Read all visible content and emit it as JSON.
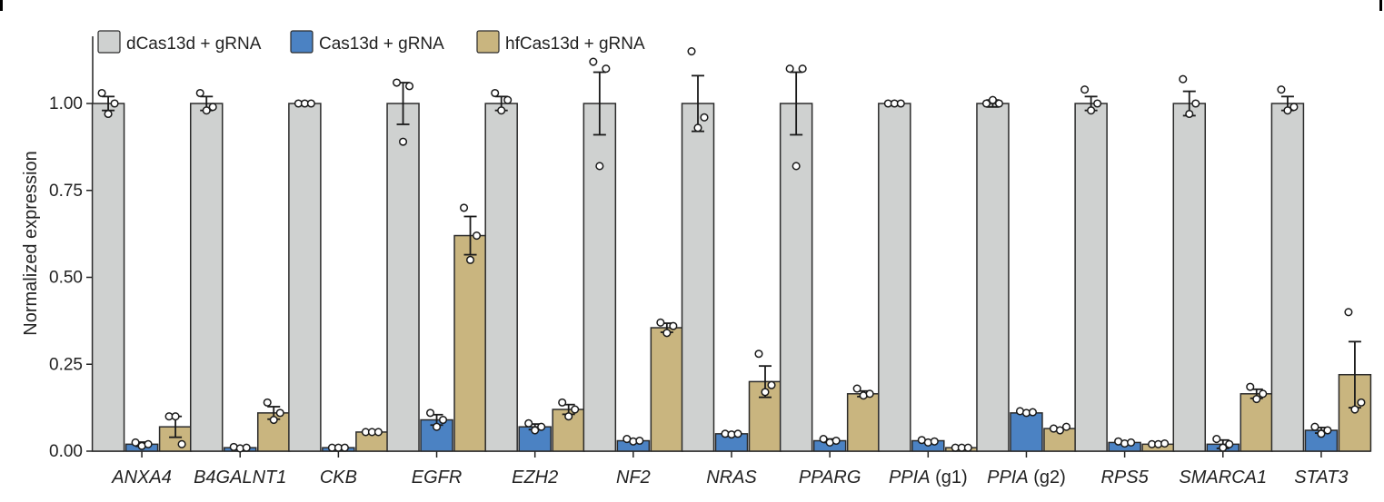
{
  "chart_data": {
    "type": "bar",
    "ylabel": "Normalized expression",
    "ylim": [
      0,
      1.2
    ],
    "yticks": [
      "0.00",
      "0.25",
      "0.50",
      "0.75",
      "1.00"
    ],
    "grid": false,
    "legend_position": "top-left",
    "categories": [
      {
        "gene": "ANXA4",
        "suffix": ""
      },
      {
        "gene": "B4GALNT1",
        "suffix": ""
      },
      {
        "gene": "CKB",
        "suffix": ""
      },
      {
        "gene": "EGFR",
        "suffix": ""
      },
      {
        "gene": "EZH2",
        "suffix": ""
      },
      {
        "gene": "NF2",
        "suffix": ""
      },
      {
        "gene": "NRAS",
        "suffix": ""
      },
      {
        "gene": "PPARG",
        "suffix": ""
      },
      {
        "gene": "PPIA",
        "suffix": " (g1)"
      },
      {
        "gene": "PPIA",
        "suffix": " (g2)"
      },
      {
        "gene": "RPS5",
        "suffix": ""
      },
      {
        "gene": "SMARCA1",
        "suffix": ""
      },
      {
        "gene": "STAT3",
        "suffix": ""
      }
    ],
    "series": [
      {
        "name": "dCas13d + gRNA",
        "color": "#cfd1d0",
        "values": [
          1.0,
          1.0,
          1.0,
          1.0,
          1.0,
          1.0,
          1.0,
          1.0,
          1.0,
          1.0,
          1.0,
          1.0,
          1.0
        ],
        "errors": [
          0.02,
          0.02,
          0.005,
          0.06,
          0.02,
          0.09,
          0.08,
          0.09,
          0.005,
          0.01,
          0.02,
          0.035,
          0.02
        ],
        "points": [
          [
            1.03,
            0.97,
            1.0
          ],
          [
            1.03,
            0.98,
            0.99
          ],
          [
            1.0,
            1.0,
            1.0
          ],
          [
            1.06,
            0.89,
            1.05
          ],
          [
            1.03,
            0.98,
            1.01
          ],
          [
            1.12,
            0.82,
            1.1
          ],
          [
            1.15,
            0.93,
            0.96
          ],
          [
            1.1,
            0.82,
            1.1
          ],
          [
            1.0,
            1.0,
            1.0
          ],
          [
            1.0,
            1.01,
            1.0
          ],
          [
            1.04,
            0.98,
            1.0
          ],
          [
            1.07,
            0.97,
            1.0
          ],
          [
            1.04,
            0.98,
            0.99
          ]
        ]
      },
      {
        "name": "Cas13d + gRNA",
        "color": "#4b82c3",
        "values": [
          0.02,
          0.01,
          0.01,
          0.09,
          0.07,
          0.03,
          0.05,
          0.03,
          0.03,
          0.11,
          0.025,
          0.02,
          0.06
        ],
        "errors": [
          0.006,
          0.003,
          0.002,
          0.015,
          0.008,
          0.004,
          0.004,
          0.005,
          0.004,
          0.004,
          0.003,
          0.012,
          0.008
        ],
        "points": [
          [
            0.025,
            0.015,
            0.02
          ],
          [
            0.012,
            0.008,
            0.01
          ],
          [
            0.01,
            0.01,
            0.01
          ],
          [
            0.11,
            0.07,
            0.09
          ],
          [
            0.08,
            0.06,
            0.07
          ],
          [
            0.035,
            0.028,
            0.03
          ],
          [
            0.05,
            0.048,
            0.05
          ],
          [
            0.035,
            0.025,
            0.03
          ],
          [
            0.032,
            0.025,
            0.028
          ],
          [
            0.115,
            0.11,
            0.112
          ],
          [
            0.028,
            0.022,
            0.025
          ],
          [
            0.035,
            0.01,
            0.02
          ],
          [
            0.07,
            0.05,
            0.06
          ]
        ]
      },
      {
        "name": "hfCas13d + gRNA",
        "color": "#c9b57f",
        "values": [
          0.07,
          0.11,
          0.055,
          0.62,
          0.12,
          0.355,
          0.2,
          0.165,
          0.01,
          0.065,
          0.02,
          0.165,
          0.22
        ],
        "errors": [
          0.03,
          0.018,
          0.004,
          0.055,
          0.014,
          0.013,
          0.045,
          0.008,
          0.002,
          0.004,
          0.003,
          0.013,
          0.095
        ],
        "points": [
          [
            0.1,
            0.1,
            0.02
          ],
          [
            0.14,
            0.09,
            0.11
          ],
          [
            0.055,
            0.055,
            0.055
          ],
          [
            0.7,
            0.55,
            0.62
          ],
          [
            0.14,
            0.1,
            0.12
          ],
          [
            0.37,
            0.34,
            0.36
          ],
          [
            0.28,
            0.17,
            0.19
          ],
          [
            0.18,
            0.16,
            0.165
          ],
          [
            0.01,
            0.01,
            0.01
          ],
          [
            0.065,
            0.06,
            0.07
          ],
          [
            0.02,
            0.02,
            0.022
          ],
          [
            0.185,
            0.15,
            0.165
          ],
          [
            0.4,
            0.12,
            0.14
          ]
        ]
      }
    ]
  }
}
